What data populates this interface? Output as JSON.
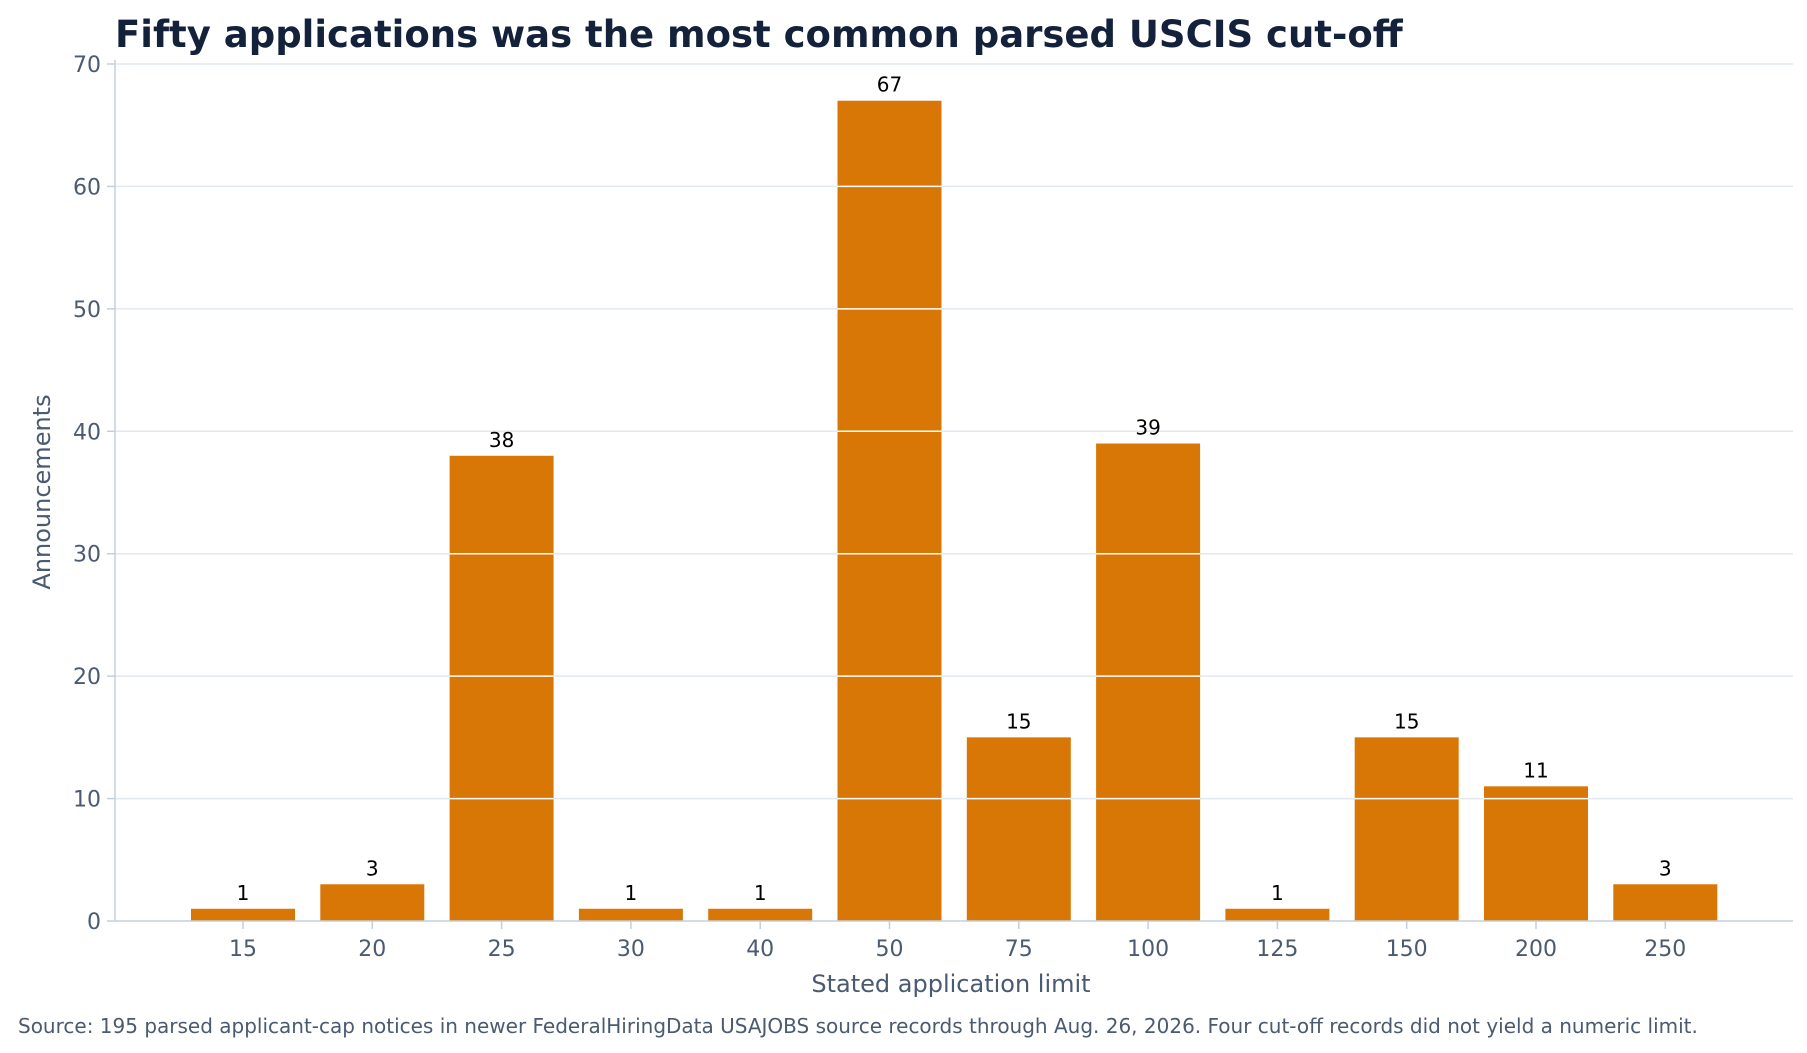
{
  "chart_data": {
    "type": "bar",
    "title": "Fifty applications was the most common parsed USCIS cut-off",
    "xlabel": "Stated application limit",
    "ylabel": "Announcements",
    "categories": [
      "15",
      "20",
      "25",
      "30",
      "40",
      "50",
      "75",
      "100",
      "125",
      "150",
      "200",
      "250"
    ],
    "values": [
      1,
      3,
      38,
      1,
      1,
      67,
      15,
      39,
      1,
      15,
      11,
      3
    ],
    "ylim": [
      0,
      70
    ],
    "yticks": [
      0,
      10,
      20,
      30,
      40,
      50,
      60,
      70
    ],
    "grid": true,
    "data_labels": true,
    "source": "Source: 195 parsed applicant-cap notices in newer FederalHiringData USAJOBS source records through Aug. 26, 2026. Four cut-off records did not yield a numeric limit."
  },
  "colors": {
    "bar": "#d97706",
    "grid": "#e2e8f0",
    "axis": "#c4cfdd",
    "title": "#14213a",
    "text": "#4a5a70"
  }
}
